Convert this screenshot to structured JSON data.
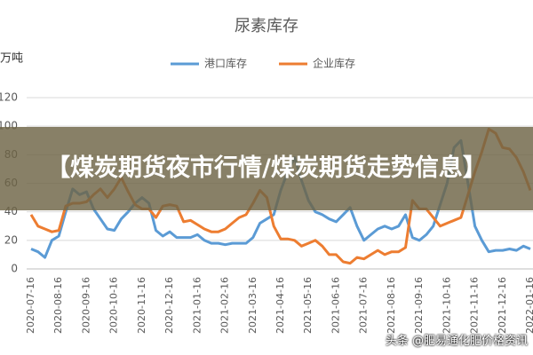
{
  "chart_data": {
    "type": "line",
    "title": "尿素库存",
    "y_label": "万吨",
    "categories": [
      "2020-07-16",
      null,
      null,
      null,
      "2020-08-16",
      null,
      null,
      null,
      "2020-09-16",
      null,
      null,
      null,
      "2020-10-16",
      null,
      null,
      null,
      "2020-11-16",
      null,
      null,
      null,
      "2020-12-16",
      null,
      null,
      null,
      "2021-01-16",
      null,
      null,
      null,
      "2021-02-16",
      null,
      null,
      null,
      "2021-03-16",
      null,
      null,
      null,
      "2021-04-16",
      null,
      null,
      null,
      "2021-05-16",
      null,
      null,
      null,
      "2021-06-16",
      null,
      null,
      null,
      "2021-07-16",
      null,
      null,
      null,
      "2021-08-16",
      null,
      null,
      null,
      "2021-09-16",
      null,
      null,
      null,
      "2021-10-16",
      null,
      null,
      null,
      "2021-11-16",
      null,
      null,
      null,
      "2021-12-16",
      null,
      null,
      null,
      "2022-01-16"
    ],
    "series": [
      {
        "name": "港口库存",
        "color": "#5b9bd5",
        "values": [
          14,
          12,
          8,
          20,
          23,
          40,
          56,
          52,
          54,
          42,
          35,
          28,
          27,
          35,
          40,
          46,
          50,
          46,
          27,
          23,
          26,
          22,
          22,
          22,
          24,
          20,
          18,
          18,
          17,
          18,
          18,
          18,
          22,
          32,
          35,
          38,
          55,
          68,
          78,
          62,
          48,
          40,
          38,
          35,
          33,
          38,
          43,
          30,
          20,
          24,
          28,
          30,
          28,
          30,
          38,
          22,
          20,
          24,
          30,
          45,
          60,
          85,
          90,
          60,
          30,
          20,
          12,
          13,
          13,
          14,
          13,
          16,
          14
        ]
      },
      {
        "name": "企业库存",
        "color": "#ed7d31",
        "values": [
          38,
          30,
          28,
          26,
          27,
          44,
          46,
          46,
          47,
          52,
          56,
          50,
          56,
          64,
          54,
          45,
          42,
          42,
          36,
          44,
          45,
          44,
          33,
          34,
          31,
          28,
          26,
          26,
          28,
          32,
          36,
          38,
          46,
          55,
          50,
          30,
          21,
          21,
          20,
          16,
          18,
          20,
          16,
          10,
          10,
          5,
          4,
          8,
          7,
          10,
          13,
          10,
          12,
          12,
          15,
          48,
          42,
          42,
          36,
          30,
          32,
          34,
          36,
          52,
          68,
          82,
          98,
          95,
          85,
          84,
          78,
          68,
          55
        ]
      }
    ],
    "ylim": [
      0,
      120
    ],
    "yticks": [
      0,
      20,
      40,
      60,
      80,
      100,
      120
    ],
    "grid": true,
    "legend": "top"
  },
  "overlay": {
    "headline": "【煤炭期货夜市行情/煤炭期货走势信息】",
    "watermark": "头条 @肥易通化肥价格资讯"
  }
}
